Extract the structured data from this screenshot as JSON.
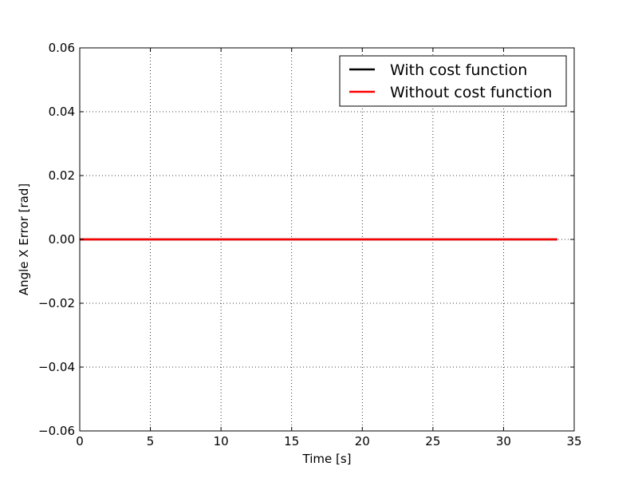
{
  "chart_data": {
    "type": "line",
    "title": "",
    "xlabel": "Time [s]",
    "ylabel": "Angle X Error [rad]",
    "xlim": [
      0,
      35
    ],
    "ylim": [
      -0.06,
      0.06
    ],
    "x_ticks": [
      0,
      5,
      10,
      15,
      20,
      25,
      30,
      35
    ],
    "x_tick_labels": [
      "0",
      "5",
      "10",
      "15",
      "20",
      "25",
      "30",
      "35"
    ],
    "y_ticks": [
      -0.06,
      -0.04,
      -0.02,
      0.0,
      0.02,
      0.04,
      0.06
    ],
    "y_tick_labels": [
      "−0.06",
      "−0.04",
      "−0.02",
      "0.00",
      "0.02",
      "0.04",
      "0.06"
    ],
    "grid": true,
    "legend_position": "top-right",
    "series": [
      {
        "name": "With cost function",
        "color": "#000000",
        "x": [
          0,
          33.8
        ],
        "y": [
          0.0,
          0.0
        ]
      },
      {
        "name": "Without cost function",
        "color": "#ff0000",
        "x": [
          0,
          33.8
        ],
        "y": [
          0.0,
          0.0
        ]
      }
    ]
  }
}
